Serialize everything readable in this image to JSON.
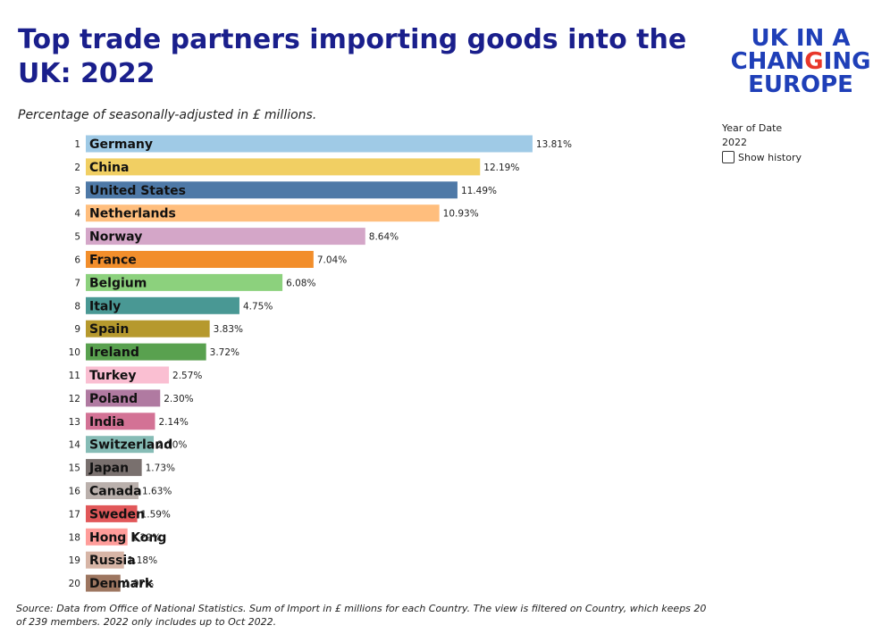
{
  "header": {
    "title": "Top trade partners importing goods into the UK: 2022",
    "subtitle": "Percentage of seasonally-adjusted in £ millions."
  },
  "logo": {
    "line1_a": "UK ",
    "line1_b": "IN A",
    "line2_a": "CHAN",
    "line2_b": "G",
    "line2_c": "ING",
    "line3": "EUROPE"
  },
  "filter": {
    "label": "Year of Date",
    "value": "2022",
    "show_history_label": "Show history"
  },
  "footer": {
    "source": "Source: Data from Office of National Statistics. Sum of Import in £ millions for each Country. The view is filtered on Country, which keeps 20 of 239 members. 2022 only includes up to Oct 2022."
  },
  "chart_data": {
    "type": "bar",
    "orientation": "horizontal",
    "categories": [
      "Germany",
      "China",
      "United States",
      "Netherlands",
      "Norway",
      "France",
      "Belgium",
      "Italy",
      "Spain",
      "Ireland",
      "Turkey",
      "Poland",
      "India",
      "Switzerland",
      "Japan",
      "Canada",
      "Sweden",
      "Hong Kong",
      "Russia",
      "Denmark"
    ],
    "ranks": [
      "1",
      "2",
      "3",
      "4",
      "5",
      "6",
      "7",
      "8",
      "9",
      "10",
      "11",
      "12",
      "13",
      "14",
      "15",
      "16",
      "17",
      "18",
      "19",
      "20"
    ],
    "values": [
      13.81,
      12.19,
      11.49,
      10.93,
      8.64,
      7.04,
      6.08,
      4.75,
      3.83,
      3.72,
      2.57,
      2.3,
      2.14,
      2.1,
      1.73,
      1.63,
      1.59,
      1.29,
      1.18,
      1.07
    ],
    "value_labels": [
      "13.81%",
      "12.19%",
      "11.49%",
      "10.93%",
      "8.64%",
      "7.04%",
      "6.08%",
      "4.75%",
      "3.83%",
      "3.72%",
      "2.57%",
      "2.30%",
      "2.14%",
      "2.10%",
      "1.73%",
      "1.63%",
      "1.59%",
      "1.29%",
      "1.18%",
      "1.07%"
    ],
    "colors": [
      "#9fcae6",
      "#f1cf63",
      "#4e79a7",
      "#ffbe7d",
      "#d4a6c8",
      "#f28e2b",
      "#8cd17d",
      "#499894",
      "#b6992d",
      "#59a14f",
      "#fabfd2",
      "#b07aa1",
      "#d37295",
      "#86bcb6",
      "#79706e",
      "#bab0ac",
      "#e15759",
      "#ff9d9a",
      "#d7b5a6",
      "#9d7660"
    ],
    "xlim": [
      0,
      14
    ],
    "grid": false,
    "legend": "none"
  }
}
